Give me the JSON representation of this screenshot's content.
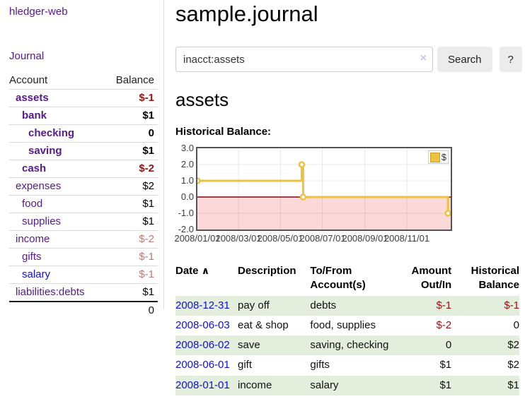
{
  "sidebar": {
    "app_title": "hledger-web",
    "journal_link": "Journal",
    "accounts_table": {
      "headers": {
        "account": "Account",
        "balance": "Balance"
      },
      "rows": [
        {
          "name": "assets",
          "balance": "$-1",
          "level": 1,
          "emph": true,
          "balance_tone": "neg-strong"
        },
        {
          "name": "bank",
          "balance": "$1",
          "level": 2,
          "emph": true,
          "balance_tone": "pos"
        },
        {
          "name": "checking",
          "balance": "0",
          "level": 3,
          "emph": true,
          "balance_tone": "pos"
        },
        {
          "name": "saving",
          "balance": "$1",
          "level": 3,
          "emph": true,
          "balance_tone": "pos"
        },
        {
          "name": "cash",
          "balance": "$-2",
          "level": 2,
          "emph": true,
          "balance_tone": "neg-strong"
        },
        {
          "name": "expenses",
          "balance": "$2",
          "level": 1,
          "emph": false,
          "balance_tone": "pos"
        },
        {
          "name": "food",
          "balance": "$1",
          "level": 2,
          "emph": false,
          "balance_tone": "pos"
        },
        {
          "name": "supplies",
          "balance": "$1",
          "level": 2,
          "emph": false,
          "balance_tone": "pos"
        },
        {
          "name": "income",
          "balance": "$-2",
          "level": 1,
          "emph": false,
          "balance_tone": "neg-dim"
        },
        {
          "name": "gifts",
          "balance": "$-1",
          "level": 2,
          "emph": false,
          "balance_tone": "neg-dim"
        },
        {
          "name": "salary",
          "balance": "$-1",
          "level": 2,
          "emph": false,
          "balance_tone": "neg-dim",
          "link_tone": "blue"
        },
        {
          "name": "liabilities:debts",
          "balance": "$1",
          "level": 1,
          "emph": false,
          "balance_tone": "pos"
        }
      ],
      "total": "0"
    }
  },
  "main": {
    "title": "sample.journal",
    "search": {
      "value": "inacct:assets",
      "clear_icon": "×",
      "button_label": "Search",
      "help_label": "?"
    },
    "account_heading": "assets",
    "register_table": {
      "headers": {
        "date": "Date",
        "sort_icon": "∧",
        "description": "Description",
        "accounts": "To/From Account(s)",
        "amount": "Amount Out/In",
        "balance": "Historical Balance"
      },
      "rows": [
        {
          "date": "2008-12-31",
          "description": "pay off",
          "accounts": "debts",
          "amount": "$-1",
          "balance": "$-1",
          "amount_neg": true,
          "balance_neg": true
        },
        {
          "date": "2008-06-03",
          "description": "eat & shop",
          "accounts": "food, supplies",
          "amount": "$-2",
          "balance": "0",
          "amount_neg": true,
          "balance_neg": false
        },
        {
          "date": "2008-06-02",
          "description": "save",
          "accounts": "saving, checking",
          "amount": "0",
          "balance": "$2",
          "amount_neg": false,
          "balance_neg": false
        },
        {
          "date": "2008-06-01",
          "description": "gift",
          "accounts": "gifts",
          "amount": "$1",
          "balance": "$2",
          "amount_neg": false,
          "balance_neg": false
        },
        {
          "date": "2008-01-01",
          "description": "income",
          "accounts": "salary",
          "amount": "$1",
          "balance": "$1",
          "amount_neg": false,
          "balance_neg": false
        }
      ]
    }
  },
  "chart_data": {
    "type": "line",
    "title": "Historical Balance:",
    "step": true,
    "series": [
      {
        "name": "$",
        "color": "#EDC240",
        "points": [
          {
            "x": "2008-01-01",
            "y": 1
          },
          {
            "x": "2008-06-01",
            "y": 2
          },
          {
            "x": "2008-06-03",
            "y": 0
          },
          {
            "x": "2008-12-31",
            "y": -1
          }
        ]
      }
    ],
    "x_ticks": [
      "2008/01/01",
      "2008/03/01",
      "2008/05/01",
      "2008/07/01",
      "2008/09/01",
      "2008/11/01"
    ],
    "y_ticks": [
      3.0,
      2.0,
      1.0,
      0.0,
      -1.0,
      -2.0
    ],
    "xlim": [
      "2008-01-01",
      "2008-12-31"
    ],
    "ylim": [
      -2,
      3
    ],
    "grid": true,
    "legend": {
      "label": "$",
      "position": "top-right"
    },
    "negative_region_color": "#fbd9d9",
    "zero_line_color": "#8b0000",
    "grid_color": "rgba(0,0,0,0.09)"
  },
  "colors": {
    "link_purple": "#551a8b",
    "link_blue": "#0f0fe0",
    "negative_strong": "#9a1212",
    "negative_dim": "#c17878",
    "row_stripe_green": "#e3efdc",
    "chart_line": "#EDC240"
  }
}
